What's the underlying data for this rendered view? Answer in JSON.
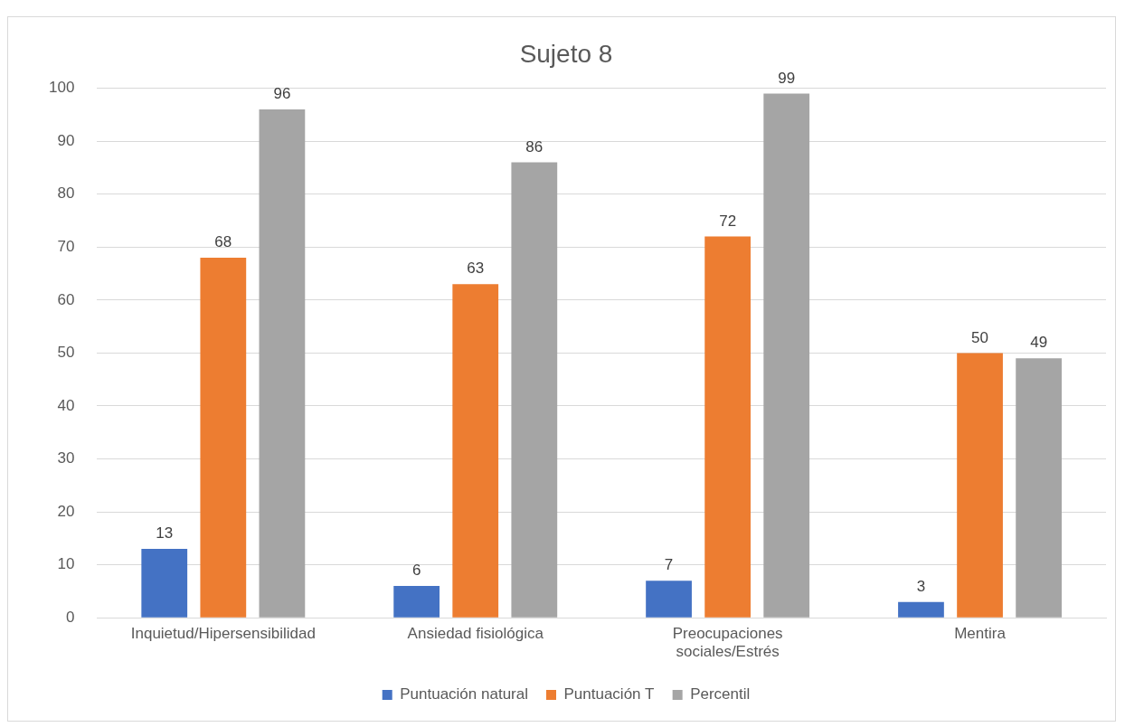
{
  "chart_data": {
    "type": "bar",
    "title": "Sujeto 8",
    "categories": [
      "Inquietud/Hipersensibilidad",
      "Ansiedad fisiológica",
      "Preocupaciones sociales/Estrés",
      "Mentira"
    ],
    "series": [
      {
        "name": "Puntuación natural",
        "color": "#4472c4",
        "values": [
          13,
          6,
          7,
          3
        ]
      },
      {
        "name": "Puntuación T",
        "color": "#ed7d31",
        "values": [
          68,
          63,
          72,
          50
        ]
      },
      {
        "name": "Percentil",
        "color": "#a5a5a5",
        "values": [
          96,
          86,
          99,
          49
        ]
      }
    ],
    "ylim": [
      0,
      100
    ],
    "yticks": [
      0,
      10,
      20,
      30,
      40,
      50,
      60,
      70,
      80,
      90,
      100
    ],
    "grid": "y",
    "legend": "bottom",
    "data_labels": true
  }
}
